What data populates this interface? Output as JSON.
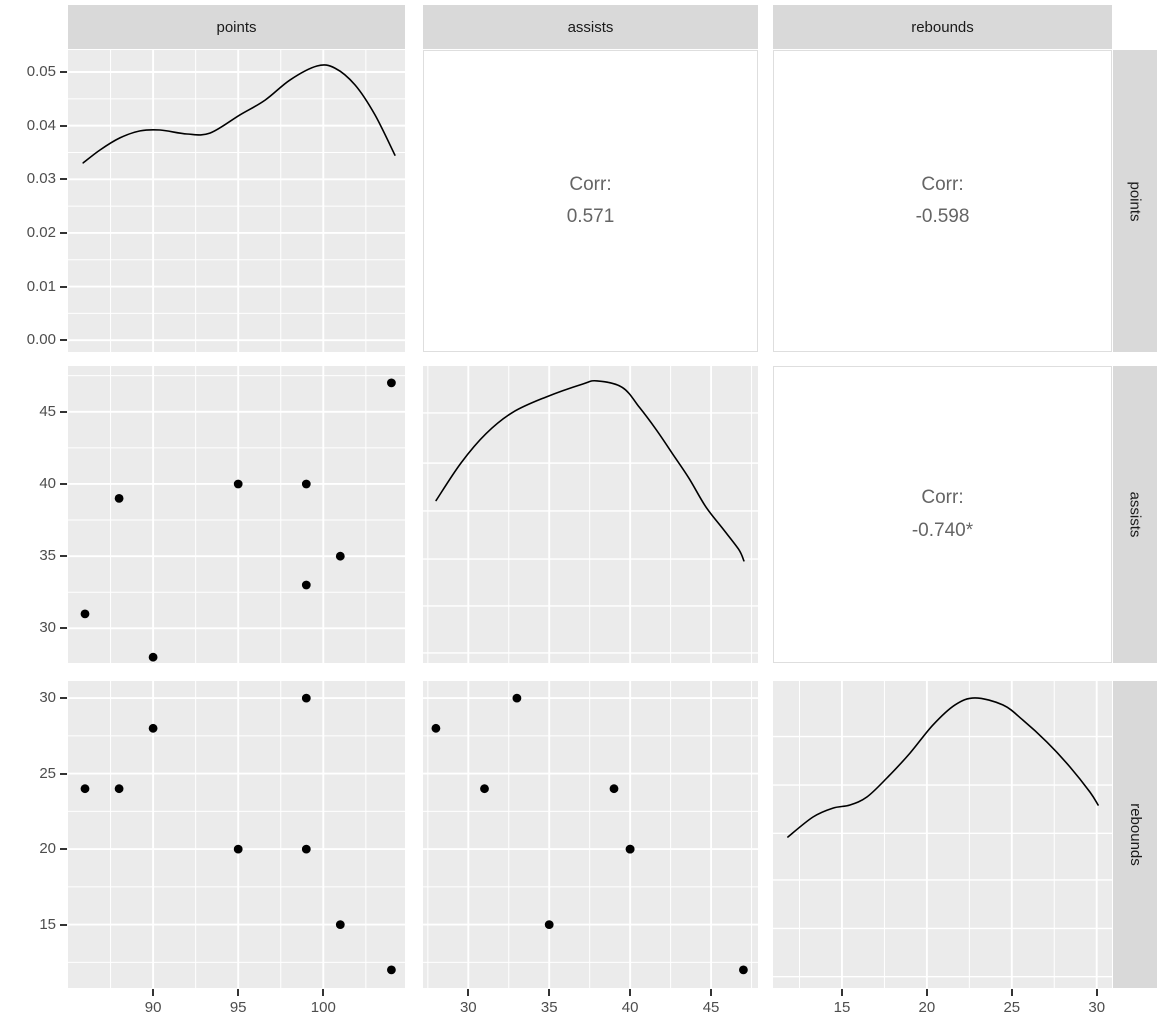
{
  "colors": {
    "panel_bg": "#EBEBEB",
    "grid": "#FFFFFF",
    "strip_bg": "#D9D9D9",
    "strip_text": "#1A1A1A",
    "axis_text": "#4D4D4D",
    "corr_text": "#656565",
    "point": "#000000",
    "curve": "#000000",
    "tick": "#333333",
    "corr_border": "#DEDEDE"
  },
  "chart_data": {
    "type": "scatterplot-matrix",
    "title": "",
    "variables": [
      "points",
      "assists",
      "rebounds"
    ],
    "strips_top": [
      "points",
      "assists",
      "rebounds"
    ],
    "strips_right": [
      "points",
      "assists",
      "rebounds"
    ],
    "observations": {
      "points": [
        86,
        88,
        90,
        95,
        99,
        99,
        101,
        104
      ],
      "assists": [
        31,
        39,
        28,
        40,
        33,
        40,
        35,
        47
      ],
      "rebounds": [
        24,
        24,
        28,
        20,
        30,
        20,
        15,
        12
      ]
    },
    "correlations": {
      "points_assists": {
        "label": "Corr:",
        "value": "0.571"
      },
      "points_rebounds": {
        "label": "Corr:",
        "value": "-0.598"
      },
      "assists_rebounds": {
        "label": "Corr:",
        "value": "-0.740*"
      }
    },
    "cells": [
      {
        "row": 0,
        "col": 0,
        "kind": "density",
        "variable": "points"
      },
      {
        "row": 0,
        "col": 1,
        "kind": "corr",
        "key": "points_assists"
      },
      {
        "row": 0,
        "col": 2,
        "kind": "corr",
        "key": "points_rebounds"
      },
      {
        "row": 1,
        "col": 0,
        "kind": "scatter",
        "x": "points",
        "y": "assists"
      },
      {
        "row": 1,
        "col": 1,
        "kind": "density",
        "variable": "assists"
      },
      {
        "row": 1,
        "col": 2,
        "kind": "corr",
        "key": "assists_rebounds"
      },
      {
        "row": 2,
        "col": 0,
        "kind": "scatter",
        "x": "points",
        "y": "rebounds"
      },
      {
        "row": 2,
        "col": 1,
        "kind": "scatter",
        "x": "assists",
        "y": "rebounds"
      },
      {
        "row": 2,
        "col": 2,
        "kind": "density",
        "variable": "rebounds"
      }
    ],
    "scales": {
      "x": [
        {
          "range": [
            85.0,
            104.8
          ],
          "majors": [
            90,
            95,
            100
          ],
          "labels": [
            "90",
            "95",
            "100"
          ],
          "minors": [
            87.5,
            92.5,
            97.5,
            102.5
          ]
        },
        {
          "range": [
            27.2,
            47.9
          ],
          "majors": [
            30,
            35,
            40,
            45
          ],
          "labels": [
            "30",
            "35",
            "40",
            "45"
          ],
          "minors": [
            27.5,
            32.5,
            37.5,
            42.5,
            47.5
          ]
        },
        {
          "range": [
            10.94,
            30.9
          ],
          "majors": [
            15,
            20,
            25,
            30
          ],
          "labels": [
            "15",
            "20",
            "25",
            "30"
          ],
          "minors": [
            12.5,
            17.5,
            22.5,
            27.5
          ]
        }
      ],
      "y": [
        {
          "range": [
            -0.0022,
            0.0541
          ],
          "majors": [
            0,
            0.01,
            0.02,
            0.03,
            0.04,
            0.05
          ],
          "labels": [
            "0.00",
            "0.01",
            "0.02",
            "0.03",
            "0.04",
            "0.05"
          ],
          "minors": [
            0.005,
            0.015,
            0.025,
            0.035,
            0.045
          ]
        },
        {
          "range": [
            27.6,
            48.17
          ],
          "majors": [
            30,
            35,
            40,
            45
          ],
          "labels": [
            "30",
            "35",
            "40",
            "45"
          ],
          "minors": [
            27.5,
            32.5,
            37.5,
            42.5,
            47.5
          ]
        },
        {
          "range": [
            10.8,
            31.13
          ],
          "majors": [
            15,
            20,
            25,
            30
          ],
          "labels": [
            "15",
            "20",
            "25",
            "30"
          ],
          "minors": [
            12.5,
            17.5,
            22.5,
            27.5
          ]
        }
      ]
    },
    "densities": {
      "points": {
        "curve": [
          [
            0.045,
            0.374
          ],
          [
            0.095,
            0.331
          ],
          [
            0.154,
            0.291
          ],
          [
            0.214,
            0.268
          ],
          [
            0.273,
            0.265
          ],
          [
            0.353,
            0.278
          ],
          [
            0.421,
            0.275
          ],
          [
            0.51,
            0.215
          ],
          [
            0.585,
            0.166
          ],
          [
            0.659,
            0.099
          ],
          [
            0.739,
            0.053
          ],
          [
            0.792,
            0.06
          ],
          [
            0.852,
            0.116
          ],
          [
            0.911,
            0.215
          ],
          [
            0.97,
            0.348
          ]
        ],
        "grid_ft": null
      },
      "assists": {
        "curve": [
          [
            0.039,
            0.453
          ],
          [
            0.113,
            0.327
          ],
          [
            0.188,
            0.228
          ],
          [
            0.268,
            0.156
          ],
          [
            0.366,
            0.105
          ],
          [
            0.476,
            0.061
          ],
          [
            0.52,
            0.05
          ],
          [
            0.595,
            0.072
          ],
          [
            0.646,
            0.139
          ],
          [
            0.694,
            0.211
          ],
          [
            0.744,
            0.294
          ],
          [
            0.794,
            0.378
          ],
          [
            0.843,
            0.472
          ],
          [
            0.893,
            0.545
          ],
          [
            0.942,
            0.617
          ],
          [
            0.958,
            0.656
          ]
        ],
        "grid_ft": [
          0.158,
          0.327,
          0.488,
          0.65,
          0.808,
          0.966
        ]
      },
      "rebounds": {
        "curve": [
          [
            0.044,
            0.508
          ],
          [
            0.118,
            0.443
          ],
          [
            0.177,
            0.414
          ],
          [
            0.227,
            0.404
          ],
          [
            0.277,
            0.378
          ],
          [
            0.336,
            0.316
          ],
          [
            0.404,
            0.235
          ],
          [
            0.472,
            0.143
          ],
          [
            0.537,
            0.078
          ],
          [
            0.596,
            0.055
          ],
          [
            0.678,
            0.078
          ],
          [
            0.737,
            0.127
          ],
          [
            0.808,
            0.199
          ],
          [
            0.876,
            0.28
          ],
          [
            0.935,
            0.362
          ],
          [
            0.959,
            0.404
          ]
        ],
        "grid_ft": [
          0.181,
          0.339,
          0.496,
          0.648,
          0.806,
          0.963
        ]
      }
    }
  }
}
